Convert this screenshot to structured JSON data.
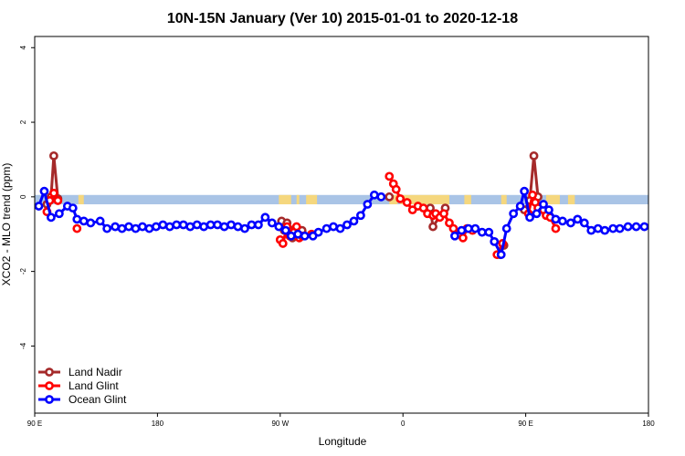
{
  "chart_data": {
    "type": "line",
    "title": "10N-15N January (Ver 10)   2015-01-01 to 2020-12-18",
    "xlabel": "Longitude",
    "ylabel": "XCO2 - MLO trend (ppm)",
    "xlim": [
      90,
      540
    ],
    "ylim": [
      -5.8,
      4.3
    ],
    "x_ticks": [
      {
        "value": 90,
        "label": "90 E"
      },
      {
        "value": 180,
        "label": "180"
      },
      {
        "value": 270,
        "label": "90 W"
      },
      {
        "value": 360,
        "label": "0"
      },
      {
        "value": 450,
        "label": "90 E"
      },
      {
        "value": 540,
        "label": "180"
      }
    ],
    "y_ticks": [
      {
        "value": 4,
        "label": "4"
      },
      {
        "value": 2,
        "label": "2"
      },
      {
        "value": 0,
        "label": "0"
      },
      {
        "value": -2,
        "label": "-2"
      },
      {
        "value": -4,
        "label": "-4"
      }
    ],
    "grid": false,
    "legend_position": "bottom-left",
    "background_band": {
      "y_range": [
        -0.2,
        0.05
      ],
      "ocean_color": "#a9c4e6",
      "land_color": "#f5d77e",
      "land_segments": [
        [
          122,
          126
        ],
        [
          269,
          278
        ],
        [
          282,
          284
        ],
        [
          289,
          297
        ],
        [
          350,
          356
        ],
        [
          358,
          394
        ],
        [
          405,
          410
        ],
        [
          432,
          436
        ],
        [
          465,
          475
        ],
        [
          481,
          486
        ]
      ]
    },
    "series": [
      {
        "name": "Land Nadir",
        "color": "#a52a2a",
        "points": [
          [
            99,
            -0.2
          ],
          [
            102,
            0.0
          ],
          [
            104,
            1.1
          ],
          [
            107,
            -0.05
          ],
          [
            271,
            -0.65
          ],
          [
            273,
            -0.9
          ],
          [
            275,
            -0.7
          ],
          [
            277,
            -1.0
          ],
          [
            279,
            -1.1
          ],
          [
            281,
            -0.85
          ],
          [
            283,
            -1.05
          ],
          [
            286,
            -0.9
          ],
          [
            350,
            0.0
          ],
          [
            380,
            -0.3
          ],
          [
            382,
            -0.8
          ],
          [
            391,
            -0.3
          ],
          [
            431,
            -1.55
          ],
          [
            434,
            -1.3
          ],
          [
            449,
            -0.35
          ],
          [
            453,
            -0.1
          ],
          [
            456,
            1.1
          ],
          [
            459,
            0.0
          ]
        ]
      },
      {
        "name": "Land Glint",
        "color": "#ff0000",
        "points": [
          [
            99,
            -0.4
          ],
          [
            101,
            -0.1
          ],
          [
            104,
            0.1
          ],
          [
            107,
            -0.1
          ],
          [
            121,
            -0.85
          ],
          [
            270,
            -1.15
          ],
          [
            272,
            -1.25
          ],
          [
            275,
            -0.8
          ],
          [
            277,
            -1.05
          ],
          [
            280,
            -0.95
          ],
          [
            282,
            -0.8
          ],
          [
            284,
            -1.1
          ],
          [
            286,
            -1.05
          ],
          [
            293,
            -1.0
          ],
          [
            350,
            0.55
          ],
          [
            353,
            0.35
          ],
          [
            355,
            0.2
          ],
          [
            358,
            -0.05
          ],
          [
            363,
            -0.15
          ],
          [
            367,
            -0.35
          ],
          [
            371,
            -0.25
          ],
          [
            375,
            -0.3
          ],
          [
            378,
            -0.45
          ],
          [
            382,
            -0.5
          ],
          [
            384,
            -0.45
          ],
          [
            387,
            -0.55
          ],
          [
            390,
            -0.45
          ],
          [
            394,
            -0.7
          ],
          [
            397,
            -0.85
          ],
          [
            401,
            -1.0
          ],
          [
            404,
            -1.1
          ],
          [
            407,
            -0.85
          ],
          [
            411,
            -0.9
          ],
          [
            429,
            -1.55
          ],
          [
            433,
            -1.25
          ],
          [
            452,
            -0.45
          ],
          [
            455,
            0.05
          ],
          [
            457,
            -0.15
          ],
          [
            459,
            -0.3
          ],
          [
            463,
            -0.35
          ],
          [
            465,
            -0.5
          ],
          [
            468,
            -0.55
          ],
          [
            472,
            -0.85
          ]
        ]
      },
      {
        "name": "Ocean Glint",
        "color": "#0000ff",
        "points": [
          [
            93,
            -0.25
          ],
          [
            97,
            0.15
          ],
          [
            102,
            -0.55
          ],
          [
            108,
            -0.45
          ],
          [
            114,
            -0.25
          ],
          [
            118,
            -0.3
          ],
          [
            121,
            -0.6
          ],
          [
            126,
            -0.65
          ],
          [
            131,
            -0.7
          ],
          [
            138,
            -0.65
          ],
          [
            143,
            -0.85
          ],
          [
            149,
            -0.8
          ],
          [
            154,
            -0.85
          ],
          [
            159,
            -0.8
          ],
          [
            164,
            -0.85
          ],
          [
            169,
            -0.8
          ],
          [
            174,
            -0.85
          ],
          [
            179,
            -0.8
          ],
          [
            184,
            -0.75
          ],
          [
            189,
            -0.8
          ],
          [
            194,
            -0.75
          ],
          [
            199,
            -0.75
          ],
          [
            204,
            -0.8
          ],
          [
            209,
            -0.75
          ],
          [
            214,
            -0.8
          ],
          [
            219,
            -0.75
          ],
          [
            224,
            -0.75
          ],
          [
            229,
            -0.8
          ],
          [
            234,
            -0.75
          ],
          [
            239,
            -0.8
          ],
          [
            244,
            -0.85
          ],
          [
            249,
            -0.75
          ],
          [
            254,
            -0.75
          ],
          [
            259,
            -0.55
          ],
          [
            264,
            -0.7
          ],
          [
            269,
            -0.8
          ],
          [
            274,
            -0.9
          ],
          [
            278,
            -1.05
          ],
          [
            283,
            -1.0
          ],
          [
            288,
            -1.05
          ],
          [
            294,
            -1.05
          ],
          [
            298,
            -0.95
          ],
          [
            304,
            -0.85
          ],
          [
            309,
            -0.8
          ],
          [
            314,
            -0.85
          ],
          [
            319,
            -0.75
          ],
          [
            324,
            -0.65
          ],
          [
            329,
            -0.5
          ],
          [
            334,
            -0.2
          ],
          [
            339,
            0.05
          ],
          [
            344,
            0.0
          ],
          [
            398,
            -1.05
          ],
          [
            403,
            -0.9
          ],
          [
            408,
            -0.85
          ],
          [
            413,
            -0.85
          ],
          [
            418,
            -0.95
          ],
          [
            423,
            -0.95
          ],
          [
            427,
            -1.2
          ],
          [
            432,
            -1.55
          ],
          [
            436,
            -0.85
          ],
          [
            441,
            -0.45
          ],
          [
            446,
            -0.25
          ],
          [
            449,
            0.15
          ],
          [
            453,
            -0.55
          ],
          [
            458,
            -0.45
          ],
          [
            463,
            -0.2
          ],
          [
            467,
            -0.35
          ],
          [
            472,
            -0.6
          ],
          [
            477,
            -0.65
          ],
          [
            483,
            -0.7
          ],
          [
            488,
            -0.6
          ],
          [
            493,
            -0.7
          ],
          [
            498,
            -0.9
          ],
          [
            503,
            -0.85
          ],
          [
            508,
            -0.9
          ],
          [
            514,
            -0.85
          ],
          [
            519,
            -0.85
          ],
          [
            525,
            -0.8
          ],
          [
            531,
            -0.8
          ],
          [
            537,
            -0.8
          ]
        ]
      }
    ]
  }
}
